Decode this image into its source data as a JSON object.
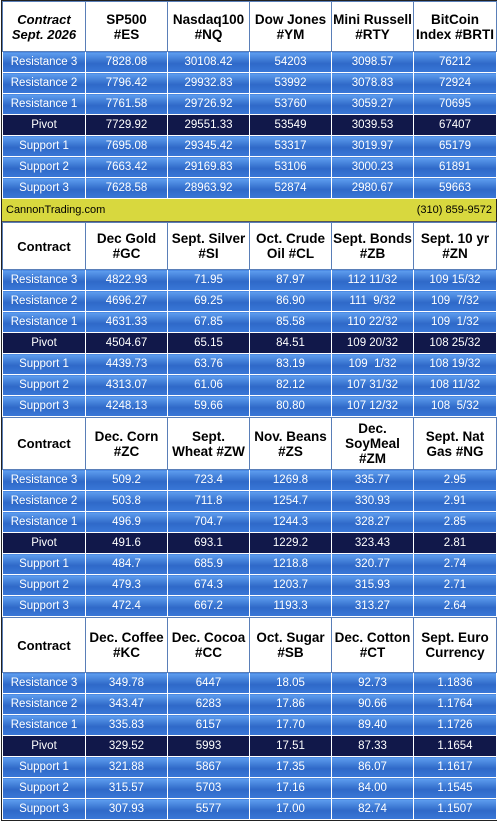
{
  "sections": [
    {
      "header": [
        [
          "Contract",
          "Sept. 2026"
        ],
        [
          "SP500",
          "#ES"
        ],
        [
          "Nasdaq100",
          "#NQ"
        ],
        [
          "Dow Jones",
          "#YM"
        ],
        [
          "Mini Russell",
          "#RTY"
        ],
        [
          "BitCoin",
          "Index #BRTI"
        ]
      ],
      "rows": [
        [
          "Resistance 3",
          "7828.08",
          "30108.42",
          "54203",
          "3098.57",
          "76212"
        ],
        [
          "Resistance 2",
          "7796.42",
          "29932.83",
          "53992",
          "3078.83",
          "72924"
        ],
        [
          "Resistance 1",
          "7761.58",
          "29726.92",
          "53760",
          "3059.27",
          "70695"
        ],
        [
          "Pivot",
          "7729.92",
          "29551.33",
          "53549",
          "3039.53",
          "67407"
        ],
        [
          "Support 1",
          "7695.08",
          "29345.42",
          "53317",
          "3019.97",
          "65179"
        ],
        [
          "Support 2",
          "7663.42",
          "29169.83",
          "53106",
          "3000.23",
          "61891"
        ],
        [
          "Support 3",
          "7628.58",
          "28963.92",
          "52874",
          "2980.67",
          "59663"
        ]
      ]
    },
    {
      "header": [
        [
          "Contract"
        ],
        [
          "Dec Gold",
          "#GC"
        ],
        [
          "Sept. Silver",
          "#SI"
        ],
        [
          "Oct. Crude",
          "Oil #CL"
        ],
        [
          "Sept. Bonds",
          "#ZB"
        ],
        [
          "Sept. 10 yr",
          "#ZN"
        ]
      ],
      "rows": [
        [
          "Resistance 3",
          "4822.93",
          "71.95",
          "87.97",
          "112 11/32",
          "109 15/32"
        ],
        [
          "Resistance 2",
          "4696.27",
          "69.25",
          "86.90",
          "111  9/32",
          "109  7/32"
        ],
        [
          "Resistance 1",
          "4631.33",
          "67.85",
          "85.58",
          "110 22/32",
          "109  1/32"
        ],
        [
          "Pivot",
          "4504.67",
          "65.15",
          "84.51",
          "109 20/32",
          "108 25/32"
        ],
        [
          "Support 1",
          "4439.73",
          "63.76",
          "83.19",
          "109  1/32",
          "108 19/32"
        ],
        [
          "Support 2",
          "4313.07",
          "61.06",
          "82.12",
          "107 31/32",
          "108 11/32"
        ],
        [
          "Support 3",
          "4248.13",
          "59.66",
          "80.80",
          "107 12/32",
          "108  5/32"
        ]
      ]
    },
    {
      "header": [
        [
          "Contract"
        ],
        [
          "Dec. Corn",
          "#ZC"
        ],
        [
          "Sept.",
          "Wheat #ZW"
        ],
        [
          "Nov. Beans",
          "#ZS"
        ],
        [
          "Dec.",
          "SoyMeal",
          "#ZM"
        ],
        [
          "Sept. Nat",
          "Gas #NG"
        ]
      ],
      "rows": [
        [
          "Resistance 3",
          "509.2",
          "723.4",
          "1269.8",
          "335.77",
          "2.95"
        ],
        [
          "Resistance 2",
          "503.8",
          "711.8",
          "1254.7",
          "330.93",
          "2.91"
        ],
        [
          "Resistance 1",
          "496.9",
          "704.7",
          "1244.3",
          "328.27",
          "2.85"
        ],
        [
          "Pivot",
          "491.6",
          "693.1",
          "1229.2",
          "323.43",
          "2.81"
        ],
        [
          "Support 1",
          "484.7",
          "685.9",
          "1218.8",
          "320.77",
          "2.74"
        ],
        [
          "Support 2",
          "479.3",
          "674.3",
          "1203.7",
          "315.93",
          "2.71"
        ],
        [
          "Support 3",
          "472.4",
          "667.2",
          "1193.3",
          "313.27",
          "2.64"
        ]
      ]
    },
    {
      "header": [
        [
          "Contract"
        ],
        [
          "Dec. Coffee",
          "#KC"
        ],
        [
          "Dec. Cocoa",
          "#CC"
        ],
        [
          "Oct. Sugar",
          "#SB"
        ],
        [
          "Dec. Cotton",
          "#CT"
        ],
        [
          "Sept. Euro",
          "Currency"
        ]
      ],
      "rows": [
        [
          "Resistance 3",
          "349.78",
          "6447",
          "18.05",
          "92.73",
          "1.1836"
        ],
        [
          "Resistance 2",
          "343.47",
          "6283",
          "17.86",
          "90.66",
          "1.1764"
        ],
        [
          "Resistance 1",
          "335.83",
          "6157",
          "17.70",
          "89.40",
          "1.1726"
        ],
        [
          "Pivot",
          "329.52",
          "5993",
          "17.51",
          "87.33",
          "1.1654"
        ],
        [
          "Support 1",
          "321.88",
          "5867",
          "17.35",
          "86.07",
          "1.1617"
        ],
        [
          "Support 2",
          "315.57",
          "5703",
          "17.16",
          "84.00",
          "1.1545"
        ],
        [
          "Support 3",
          "307.93",
          "5577",
          "17.00",
          "82.74",
          "1.1507"
        ]
      ]
    }
  ],
  "banner": {
    "left": "CannonTrading.com",
    "right": "(310) 859-9572"
  }
}
